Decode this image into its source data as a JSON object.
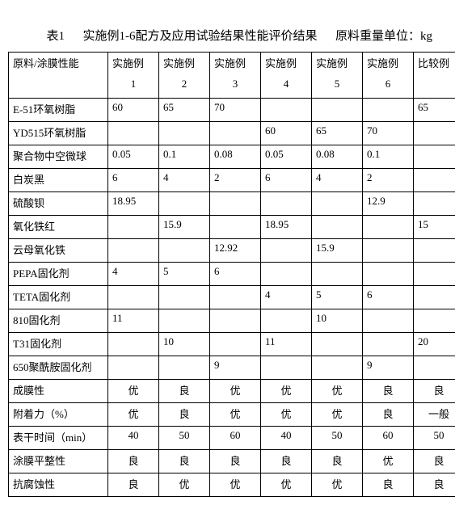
{
  "caption_left": "表1",
  "caption_mid": "实施例1-6配方及应用试验结果性能评价结果",
  "caption_right": "原料重量单位：kg",
  "header": {
    "rowhead": "原料/涂膜性能",
    "cols_line1": [
      "实施例",
      "实施例",
      "实施例",
      "实施例",
      "实施例",
      "实施例",
      "比较例"
    ],
    "cols_line2": [
      "1",
      "2",
      "3",
      "4",
      "5",
      "6",
      ""
    ]
  },
  "rows": [
    {
      "label": "E-51环氧树脂",
      "cells": [
        "60",
        "65",
        "70",
        "",
        "",
        "",
        "65"
      ]
    },
    {
      "label": "YD515环氧树脂",
      "cells": [
        "",
        "",
        "",
        "60",
        "65",
        "70",
        ""
      ]
    },
    {
      "label": "聚合物中空微球",
      "cells": [
        "0.05",
        "0.1",
        "0.08",
        "0.05",
        "0.08",
        "0.1",
        ""
      ]
    },
    {
      "label": "白炭黑",
      "cells": [
        "6",
        "4",
        "2",
        "6",
        "4",
        "2",
        ""
      ]
    },
    {
      "label": "硫酸钡",
      "cells": [
        "18.95",
        "",
        "",
        "",
        "",
        "12.9",
        ""
      ]
    },
    {
      "label": "氧化铁红",
      "cells": [
        "",
        "15.9",
        "",
        "18.95",
        "",
        "",
        "15"
      ]
    },
    {
      "label": "云母氧化铁",
      "cells": [
        "",
        "",
        "12.92",
        "",
        "15.9",
        "",
        ""
      ]
    },
    {
      "label": "PEPA固化剂",
      "cells": [
        "4",
        "5",
        "6",
        "",
        "",
        "",
        ""
      ]
    },
    {
      "label": "TETA固化剂",
      "cells": [
        "",
        "",
        "",
        "4",
        "5",
        "6",
        ""
      ]
    },
    {
      "label": "810固化剂",
      "cells": [
        "11",
        "",
        "",
        "",
        "10",
        "",
        ""
      ]
    },
    {
      "label": "T31固化剂",
      "cells": [
        "",
        "10",
        "",
        "11",
        "",
        "",
        "20"
      ]
    },
    {
      "label": "650聚酰胺固化剂",
      "cells": [
        "",
        "",
        "9",
        "",
        "",
        "9",
        ""
      ]
    },
    {
      "label": "成膜性",
      "cells": [
        "优",
        "良",
        "优",
        "优",
        "优",
        "良",
        "良"
      ],
      "center": true
    },
    {
      "label": "附着力（%）",
      "cells": [
        "优",
        "良",
        "优",
        "优",
        "优",
        "良",
        "一般"
      ],
      "center": true
    },
    {
      "label": "表干时间（min）",
      "cells": [
        "40",
        "50",
        "60",
        "40",
        "50",
        "60",
        "50"
      ],
      "center": true
    },
    {
      "label": "涂膜平整性",
      "cells": [
        "良",
        "良",
        "良",
        "良",
        "良",
        "优",
        "良"
      ],
      "center": true
    },
    {
      "label": "抗腐蚀性",
      "cells": [
        "良",
        "优",
        "优",
        "优",
        "优",
        "良",
        "良"
      ],
      "center": true
    }
  ]
}
